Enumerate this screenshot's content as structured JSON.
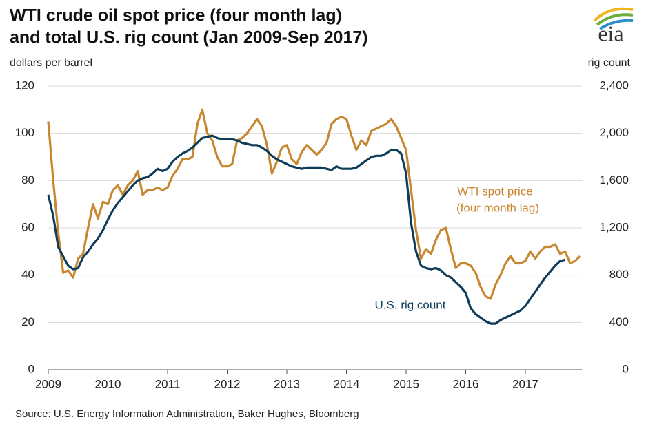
{
  "chart_data": {
    "type": "line",
    "title": [
      "WTI crude oil spot price (four month lag)",
      "and total U.S. rig count (Jan 2009-Sep 2017)"
    ],
    "logo": "eia",
    "y_label": "dollars per barrel",
    "y2_label": "rig count",
    "source": "Source: U.S. Energy Information Administration, Baker Hughes, Bloomberg",
    "x": [
      2009,
      2009.083,
      2009.167,
      2009.25,
      2009.333,
      2009.417,
      2009.5,
      2009.583,
      2009.667,
      2009.75,
      2009.833,
      2009.917,
      2010,
      2010.083,
      2010.167,
      2010.25,
      2010.333,
      2010.417,
      2010.5,
      2010.583,
      2010.667,
      2010.75,
      2010.833,
      2010.917,
      2011,
      2011.083,
      2011.167,
      2011.25,
      2011.333,
      2011.417,
      2011.5,
      2011.583,
      2011.667,
      2011.75,
      2011.833,
      2011.917,
      2012,
      2012.083,
      2012.167,
      2012.25,
      2012.333,
      2012.417,
      2012.5,
      2012.583,
      2012.667,
      2012.75,
      2012.833,
      2012.917,
      2013,
      2013.083,
      2013.167,
      2013.25,
      2013.333,
      2013.417,
      2013.5,
      2013.583,
      2013.667,
      2013.75,
      2013.833,
      2013.917,
      2014,
      2014.083,
      2014.167,
      2014.25,
      2014.333,
      2014.417,
      2014.5,
      2014.583,
      2014.667,
      2014.75,
      2014.833,
      2014.917,
      2015,
      2015.083,
      2015.167,
      2015.25,
      2015.333,
      2015.417,
      2015.5,
      2015.583,
      2015.667,
      2015.75,
      2015.833,
      2015.917,
      2016,
      2016.083,
      2016.167,
      2016.25,
      2016.333,
      2016.417,
      2016.5,
      2016.583,
      2016.667,
      2016.75,
      2016.833,
      2016.917,
      2017,
      2017.083,
      2017.167,
      2017.25,
      2017.333,
      2017.417,
      2017.5,
      2017.583,
      2017.667,
      2017.75,
      2017.833,
      2017.917
    ],
    "xlim": [
      2009,
      2017.95
    ],
    "xticks": [
      2009,
      2010,
      2011,
      2012,
      2013,
      2014,
      2015,
      2016,
      2017
    ],
    "ylim": [
      0,
      120
    ],
    "yticks": [
      0,
      20,
      40,
      60,
      80,
      100,
      120
    ],
    "y2lim": [
      0,
      2400
    ],
    "y2ticks": [
      0,
      {
        "value": 400,
        "label": "400"
      },
      {
        "value": 800,
        "label": "800"
      },
      {
        "value": 1200,
        "label": "1,200"
      },
      {
        "value": 1600,
        "label": "1,600"
      },
      {
        "value": 2000,
        "label": "2,000"
      },
      {
        "value": 2400,
        "label": "2,400"
      }
    ],
    "grid": true,
    "series": [
      {
        "name": "WTI spot price",
        "name_note": "(four month lag)",
        "color": "#c8862f",
        "axis": "y",
        "values": [
          105,
          80,
          58,
          41,
          42,
          39,
          47,
          49,
          60,
          70,
          64,
          71,
          70,
          76,
          78,
          74,
          78,
          80,
          84,
          74,
          76,
          76,
          77,
          76,
          77,
          82,
          85,
          89,
          89,
          90,
          104,
          110,
          100,
          97,
          90,
          86,
          86,
          87,
          97,
          98,
          100,
          103,
          106,
          103,
          95,
          83,
          88,
          94,
          95,
          89,
          87,
          92,
          95,
          93,
          91,
          93,
          96,
          104,
          106,
          107,
          106,
          99,
          93,
          97,
          95,
          101,
          102,
          103,
          104,
          106,
          103,
          98,
          93,
          76,
          59,
          47,
          51,
          49,
          55,
          59,
          60,
          51,
          43,
          45,
          45,
          44,
          41,
          35,
          31,
          30,
          36,
          40,
          45,
          48,
          45,
          45,
          46,
          50,
          47,
          50,
          52,
          52,
          53,
          49,
          50,
          45,
          46,
          48
        ]
      },
      {
        "name": "U.S. rig count",
        "color": "#0f3c5a",
        "axis": "y2",
        "values": [
          1480,
          1300,
          1040,
          960,
          880,
          850,
          860,
          950,
          1000,
          1060,
          1110,
          1180,
          1270,
          1350,
          1410,
          1460,
          1510,
          1560,
          1600,
          1620,
          1630,
          1660,
          1700,
          1680,
          1700,
          1760,
          1800,
          1830,
          1850,
          1880,
          1920,
          1960,
          1970,
          1980,
          1960,
          1950,
          1950,
          1950,
          1940,
          1920,
          1910,
          1900,
          1900,
          1880,
          1850,
          1810,
          1780,
          1760,
          1740,
          1720,
          1710,
          1700,
          1710,
          1710,
          1710,
          1710,
          1700,
          1690,
          1720,
          1700,
          1700,
          1700,
          1710,
          1740,
          1770,
          1800,
          1810,
          1810,
          1830,
          1860,
          1860,
          1830,
          1660,
          1240,
          1000,
          880,
          860,
          850,
          860,
          840,
          800,
          780,
          740,
          700,
          650,
          520,
          470,
          440,
          410,
          390,
          390,
          420,
          440,
          460,
          480,
          500,
          540,
          600,
          660,
          720,
          780,
          830,
          880,
          920,
          930,
          null,
          null,
          null
        ]
      }
    ]
  }
}
